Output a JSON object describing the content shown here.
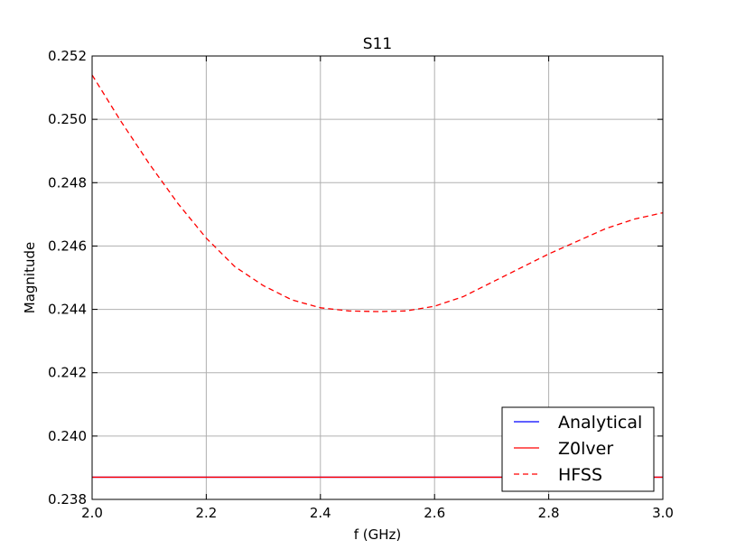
{
  "chart_data": {
    "type": "line",
    "title": "S11",
    "xlabel": "f (GHz)",
    "ylabel": "Magnitude",
    "xlim": [
      2.0,
      3.0
    ],
    "ylim": [
      0.238,
      0.252
    ],
    "xticks": [
      2.0,
      2.2,
      2.4,
      2.6,
      2.8,
      3.0
    ],
    "xtick_labels": [
      "2.0",
      "2.2",
      "2.4",
      "2.6",
      "2.8",
      "3.0"
    ],
    "yticks": [
      0.238,
      0.24,
      0.242,
      0.244,
      0.246,
      0.248,
      0.25,
      0.252
    ],
    "ytick_labels": [
      "0.238",
      "0.240",
      "0.242",
      "0.244",
      "0.246",
      "0.248",
      "0.250",
      "0.252"
    ],
    "grid": true,
    "legend_position": "lower-right",
    "series": [
      {
        "name": "Analytical",
        "color": "#0000ff",
        "style": "solid",
        "x": [
          2.0,
          3.0
        ],
        "y": [
          0.2387,
          0.2387
        ]
      },
      {
        "name": "Z0lver",
        "color": "#ff0000",
        "style": "solid",
        "x": [
          2.0,
          3.0
        ],
        "y": [
          0.2387,
          0.2387
        ]
      },
      {
        "name": "HFSS",
        "color": "#ff0000",
        "style": "dashed",
        "x": [
          2.0,
          2.05,
          2.1,
          2.15,
          2.2,
          2.25,
          2.3,
          2.35,
          2.4,
          2.45,
          2.5,
          2.55,
          2.6,
          2.65,
          2.7,
          2.75,
          2.8,
          2.85,
          2.9,
          2.95,
          3.0
        ],
        "y": [
          0.2514,
          0.24995,
          0.2486,
          0.24735,
          0.24625,
          0.24535,
          0.24475,
          0.2443,
          0.24405,
          0.24395,
          0.24393,
          0.24395,
          0.2441,
          0.2444,
          0.24485,
          0.2453,
          0.24575,
          0.24615,
          0.24655,
          0.24685,
          0.24705
        ]
      }
    ]
  }
}
